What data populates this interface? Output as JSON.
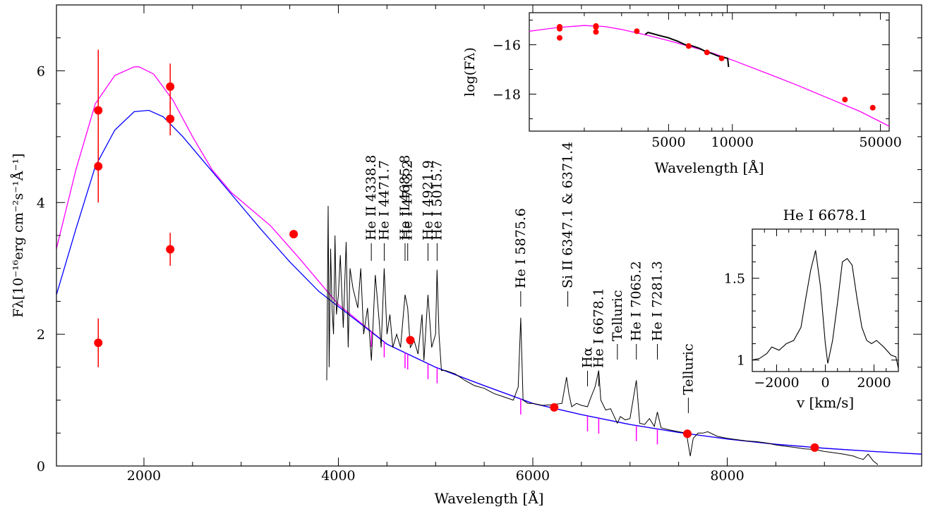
{
  "chart_data": [
    {
      "type": "scatter",
      "role": "main",
      "xlabel": "Wavelength [Å]",
      "ylabel": "Fλ[10⁻¹⁶erg cm⁻²s⁻¹Å⁻¹]",
      "xlim": [
        1100,
        10000
      ],
      "ylim": [
        0,
        7
      ],
      "xticks": [
        2000,
        4000,
        6000,
        8000
      ],
      "yticks": [
        0,
        2,
        4,
        6
      ],
      "colors": {
        "points": "#ff0000",
        "magenta_model": "#ff00ff",
        "blue_model": "#0000ff",
        "spectrum": "#000000"
      },
      "photometry": [
        {
          "x": 1530,
          "y": 5.4,
          "err": 0.92
        },
        {
          "x": 1530,
          "y": 4.55,
          "err": 0.55
        },
        {
          "x": 1530,
          "y": 1.87,
          "err": 0.37
        },
        {
          "x": 2270,
          "y": 5.76,
          "err": 0.35
        },
        {
          "x": 2270,
          "y": 5.27,
          "err": 0.25
        },
        {
          "x": 2270,
          "y": 3.29,
          "err": 0.25
        },
        {
          "x": 3540,
          "y": 3.52,
          "err": 0
        },
        {
          "x": 4740,
          "y": 1.91,
          "err": 0
        },
        {
          "x": 6220,
          "y": 0.89,
          "err": 0
        },
        {
          "x": 7590,
          "y": 0.49,
          "err": 0
        },
        {
          "x": 8900,
          "y": 0.28,
          "err": 0
        }
      ],
      "magenta_model": {
        "x": [
          1100,
          1300,
          1500,
          1700,
          1900,
          1950,
          2100,
          2300,
          2500,
          2700,
          2900,
          3100,
          3300,
          3600,
          4000,
          4500,
          5000,
          5500,
          6000,
          6500,
          7000,
          7500,
          8000,
          8500,
          9000,
          9500,
          10000
        ],
        "y": [
          3.3,
          4.5,
          5.5,
          5.93,
          6.06,
          6.06,
          5.95,
          5.55,
          5.0,
          4.5,
          4.15,
          3.9,
          3.65,
          3.15,
          2.45,
          1.85,
          1.5,
          1.22,
          0.95,
          0.78,
          0.63,
          0.51,
          0.41,
          0.33,
          0.27,
          0.22,
          0.18
        ]
      },
      "blue_model": {
        "x": [
          1100,
          1300,
          1500,
          1700,
          1900,
          2050,
          2200,
          2400,
          2600,
          2800,
          3000,
          3200,
          3500,
          3800,
          4000,
          4500,
          5000,
          5500,
          6000,
          6500,
          7000,
          7500,
          8000,
          8500,
          9000,
          9500,
          10000
        ],
        "y": [
          2.6,
          3.6,
          4.55,
          5.1,
          5.38,
          5.4,
          5.3,
          5.0,
          4.65,
          4.3,
          3.95,
          3.6,
          3.1,
          2.65,
          2.42,
          1.85,
          1.5,
          1.22,
          0.95,
          0.78,
          0.63,
          0.51,
          0.41,
          0.33,
          0.27,
          0.22,
          0.18
        ]
      },
      "observed_spectrum": {
        "x": [
          3880,
          3895,
          3905,
          3920,
          3935,
          3950,
          3965,
          3980,
          4000,
          4020,
          4050,
          4080,
          4101,
          4120,
          4150,
          4200,
          4230,
          4260,
          4300,
          4340,
          4380,
          4420,
          4440,
          4471,
          4500,
          4530,
          4560,
          4600,
          4640,
          4686,
          4713,
          4740,
          4780,
          4820,
          4860,
          4880,
          4921,
          4960,
          5000,
          5015,
          5035,
          5060,
          5100,
          5200,
          5300,
          5400,
          5500,
          5600,
          5700,
          5800,
          5850,
          5876,
          5900,
          5950,
          6000,
          6100,
          6200,
          6300,
          6347,
          6371,
          6400,
          6450,
          6500,
          6563,
          6600,
          6640,
          6678,
          6700,
          6750,
          6800,
          6870,
          6900,
          6950,
          7000,
          7065,
          7100,
          7150,
          7200,
          7250,
          7281,
          7320,
          7400,
          7500,
          7580,
          7620,
          7650,
          7700,
          7750,
          7800,
          7900,
          8000,
          8100,
          8200,
          8300,
          8400,
          8500,
          8600,
          8700,
          8800,
          8900,
          9000,
          9100,
          9200,
          9300,
          9350,
          9400,
          9450,
          9500,
          9550
        ],
        "y": [
          1.3,
          3.95,
          1.5,
          3.3,
          2.4,
          2.0,
          3.5,
          2.3,
          2.6,
          3.2,
          2.1,
          3.4,
          1.8,
          3.0,
          2.7,
          2.4,
          3.0,
          2.0,
          2.4,
          1.6,
          2.9,
          2.2,
          1.8,
          3.0,
          2.0,
          2.3,
          1.8,
          2.0,
          1.8,
          2.6,
          2.4,
          1.8,
          1.9,
          1.7,
          2.3,
          1.6,
          2.6,
          1.8,
          2.0,
          2.98,
          2.0,
          1.45,
          1.45,
          1.4,
          1.3,
          1.22,
          1.18,
          1.1,
          1.05,
          1.0,
          1.2,
          2.25,
          1.0,
          0.95,
          0.95,
          0.92,
          0.93,
          0.95,
          1.35,
          1.1,
          0.9,
          0.95,
          0.92,
          0.9,
          1.05,
          1.2,
          1.45,
          1.0,
          0.85,
          0.87,
          0.65,
          0.75,
          0.7,
          0.72,
          1.3,
          0.65,
          0.63,
          0.72,
          0.6,
          0.82,
          0.58,
          0.55,
          0.52,
          0.5,
          0.15,
          0.42,
          0.5,
          0.5,
          0.52,
          0.45,
          0.42,
          0.4,
          0.38,
          0.37,
          0.35,
          0.32,
          0.3,
          0.28,
          0.26,
          0.25,
          0.22,
          0.2,
          0.18,
          0.15,
          0.12,
          0.1,
          0.18,
          0.08,
          0.02
        ]
      },
      "line_labels": [
        {
          "text": "He II 4338.8",
          "x": 4338.8
        },
        {
          "text": "He I 4471.7",
          "x": 4471.7
        },
        {
          "text": "He II 4685.8",
          "x": 4685.8
        },
        {
          "text": "He I 4713.2",
          "x": 4713.2
        },
        {
          "text": "He I 4921.9",
          "x": 4921.9
        },
        {
          "text": "He I 5015.7",
          "x": 5015.7
        },
        {
          "text": "He I 5875.6",
          "x": 5875.6
        },
        {
          "text": "Si II 6347.1 & 6371.4",
          "x": 6360
        },
        {
          "text": "Hα",
          "x": 6562.8
        },
        {
          "text": "He I 6678.1",
          "x": 6678.1
        },
        {
          "text": "Telluric",
          "x": 6870
        },
        {
          "text": "He I 7065.2",
          "x": 7065.2
        },
        {
          "text": "He I 7281.3",
          "x": 7281.3
        },
        {
          "text": "Telluric",
          "x": 7600
        }
      ]
    },
    {
      "type": "scatter",
      "role": "inset-sed",
      "xlabel": "Wavelength [Å]",
      "ylabel": "log(Fλ)",
      "xscale": "log",
      "xlim": [
        1100,
        55000
      ],
      "ylim": [
        -19.5,
        -14.7
      ],
      "xtick_labels": [
        "5000",
        "10000",
        "50000"
      ],
      "xticks": [
        5000,
        10000,
        50000
      ],
      "yticks": [
        -18,
        -16
      ],
      "photometry": [
        {
          "x": 1530,
          "y": -15.27
        },
        {
          "x": 1530,
          "y": -15.35
        },
        {
          "x": 1530,
          "y": -15.72
        },
        {
          "x": 2270,
          "y": -15.24
        },
        {
          "x": 2270,
          "y": -15.28
        },
        {
          "x": 2270,
          "y": -15.48
        },
        {
          "x": 3540,
          "y": -15.45
        },
        {
          "x": 6220,
          "y": -16.05
        },
        {
          "x": 7590,
          "y": -16.31
        },
        {
          "x": 8900,
          "y": -16.55
        },
        {
          "x": 34000,
          "y": -18.22
        },
        {
          "x": 46000,
          "y": -18.55
        }
      ],
      "model": {
        "x": [
          1100,
          1500,
          2000,
          2500,
          3000,
          4000,
          5000,
          6000,
          7000,
          8000,
          9000,
          10000,
          15000,
          20000,
          30000,
          40000,
          55000
        ],
        "y": [
          -15.45,
          -15.3,
          -15.22,
          -15.26,
          -15.38,
          -15.62,
          -15.83,
          -16.02,
          -16.18,
          -16.33,
          -16.48,
          -16.62,
          -17.2,
          -17.62,
          -18.25,
          -18.7,
          -19.3
        ]
      },
      "spectrum": {
        "x": [
          3880,
          4000,
          4500,
          5000,
          5500,
          6000,
          6500,
          7000,
          7500,
          8000,
          8500,
          9000,
          9500,
          9600
        ],
        "y": [
          -15.58,
          -15.5,
          -15.62,
          -15.72,
          -15.85,
          -16.0,
          -16.05,
          -16.15,
          -16.28,
          -16.35,
          -16.45,
          -16.5,
          -16.55,
          -16.9
        ]
      }
    },
    {
      "type": "line",
      "role": "inset-profile",
      "title": "He I 6678.1",
      "xlabel": "v [km/s]",
      "xlim": [
        -3000,
        3000
      ],
      "ylim": [
        0.93,
        1.8
      ],
      "xtick_labels": [
        "−2000",
        "0",
        "2000"
      ],
      "xticks": [
        -2000,
        0,
        2000
      ],
      "yticks": [
        1,
        1.5
      ],
      "ytick_labels": [
        "1",
        "1.5"
      ],
      "x": [
        -3000,
        -2700,
        -2400,
        -2200,
        -1900,
        -1600,
        -1300,
        -1000,
        -800,
        -600,
        -400,
        -200,
        0,
        100,
        300,
        500,
        700,
        900,
        1100,
        1300,
        1500,
        1700,
        1900,
        2100,
        2400,
        2700,
        2900,
        3000
      ],
      "y": [
        1.0,
        1.01,
        1.04,
        1.08,
        1.06,
        1.1,
        1.12,
        1.2,
        1.38,
        1.55,
        1.67,
        1.45,
        1.1,
        0.98,
        1.12,
        1.35,
        1.6,
        1.62,
        1.58,
        1.38,
        1.2,
        1.12,
        1.1,
        1.12,
        1.08,
        1.03,
        1.02,
        0.95
      ]
    }
  ]
}
